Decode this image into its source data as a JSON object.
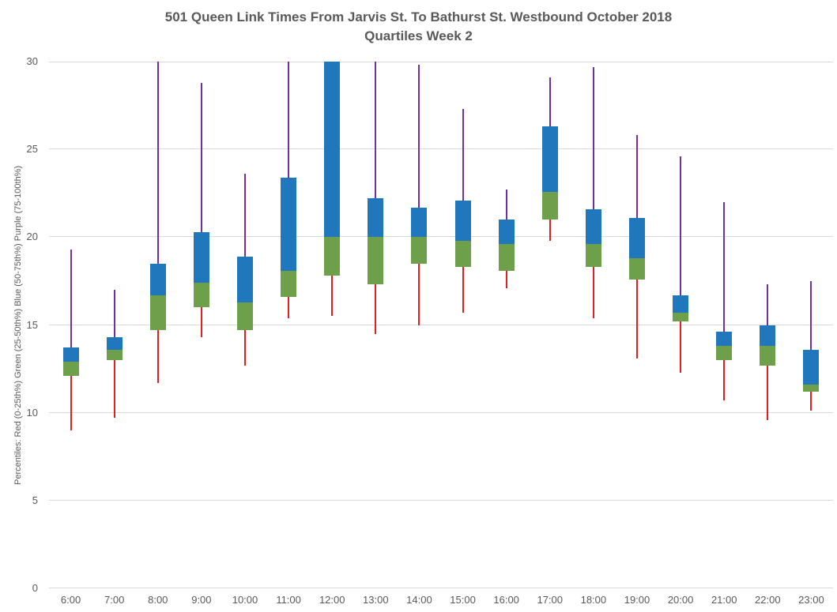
{
  "figure": {
    "title": "501 Queen Link Times From Jarvis St. To Bathurst St. Westbound October 2018",
    "subtitle": "Quartiles Week 2",
    "ylabel": "Percentiles:  Red (0-25th%)  Green (25-50th%)  Blue (50-75th%)  Purple (75-100th%)"
  },
  "chart_data": {
    "type": "boxplot",
    "title": "501 Queen Link Times From Jarvis St. To Bathurst St. Westbound October 2018",
    "subtitle": "Quartiles Week 2",
    "xlabel": "",
    "ylabel": "Percentiles:  Red (0-25th%)  Green (25-50th%)  Blue (50-75th%)  Purple (75-100th%)",
    "ylim": [
      0,
      30
    ],
    "yticks": [
      0,
      5,
      10,
      15,
      20,
      25,
      30
    ],
    "grid": true,
    "legend": "none",
    "categories": [
      "6:00",
      "7:00",
      "8:00",
      "9:00",
      "10:00",
      "11:00",
      "12:00",
      "13:00",
      "14:00",
      "15:00",
      "16:00",
      "17:00",
      "18:00",
      "19:00",
      "20:00",
      "21:00",
      "22:00",
      "23:00"
    ],
    "colors": {
      "whisker_low_red": "#e02020",
      "box_low_green": "#6ea04b",
      "box_high_blue": "#2077bc",
      "whisker_high_purple": "#7030a0",
      "gridline": "#d9d9d9",
      "text": "#595959"
    },
    "boxes": [
      {
        "hour": "6:00",
        "p0": 9.0,
        "p25": 12.1,
        "p50": 12.9,
        "p75": 13.7,
        "p100": 19.3
      },
      {
        "hour": "7:00",
        "p0": 9.7,
        "p25": 13.0,
        "p50": 13.6,
        "p75": 14.3,
        "p100": 17.0
      },
      {
        "hour": "8:00",
        "p0": 11.7,
        "p25": 14.7,
        "p50": 16.7,
        "p75": 18.5,
        "p100": 30.0
      },
      {
        "hour": "9:00",
        "p0": 14.3,
        "p25": 16.0,
        "p50": 17.4,
        "p75": 20.3,
        "p100": 28.8
      },
      {
        "hour": "10:00",
        "p0": 12.7,
        "p25": 14.7,
        "p50": 16.3,
        "p75": 18.9,
        "p100": 23.6
      },
      {
        "hour": "11:00",
        "p0": 15.4,
        "p25": 16.6,
        "p50": 18.1,
        "p75": 23.4,
        "p100": 30.0
      },
      {
        "hour": "12:00",
        "p0": 15.5,
        "p25": 17.8,
        "p50": 20.0,
        "p75": 30.0,
        "p100": 30.0
      },
      {
        "hour": "13:00",
        "p0": 14.5,
        "p25": 17.3,
        "p50": 20.0,
        "p75": 22.2,
        "p100": 30.0
      },
      {
        "hour": "14:00",
        "p0": 15.0,
        "p25": 18.5,
        "p50": 20.0,
        "p75": 21.7,
        "p100": 29.8
      },
      {
        "hour": "15:00",
        "p0": 15.7,
        "p25": 18.3,
        "p50": 19.8,
        "p75": 22.1,
        "p100": 27.3
      },
      {
        "hour": "16:00",
        "p0": 17.1,
        "p25": 18.1,
        "p50": 19.6,
        "p75": 21.0,
        "p100": 22.7
      },
      {
        "hour": "17:00",
        "p0": 19.8,
        "p25": 21.0,
        "p50": 22.6,
        "p75": 26.3,
        "p100": 29.1
      },
      {
        "hour": "18:00",
        "p0": 15.4,
        "p25": 18.3,
        "p50": 19.6,
        "p75": 21.6,
        "p100": 29.7
      },
      {
        "hour": "19:00",
        "p0": 13.1,
        "p25": 17.6,
        "p50": 18.8,
        "p75": 21.1,
        "p100": 25.8
      },
      {
        "hour": "20:00",
        "p0": 12.3,
        "p25": 15.2,
        "p50": 15.7,
        "p75": 16.7,
        "p100": 24.6
      },
      {
        "hour": "21:00",
        "p0": 10.7,
        "p25": 13.0,
        "p50": 13.8,
        "p75": 14.6,
        "p100": 22.0
      },
      {
        "hour": "22:00",
        "p0": 9.6,
        "p25": 12.7,
        "p50": 13.8,
        "p75": 15.0,
        "p100": 17.3
      },
      {
        "hour": "23:00",
        "p0": 10.1,
        "p25": 11.2,
        "p50": 11.6,
        "p75": 13.6,
        "p100": 17.5
      }
    ]
  }
}
